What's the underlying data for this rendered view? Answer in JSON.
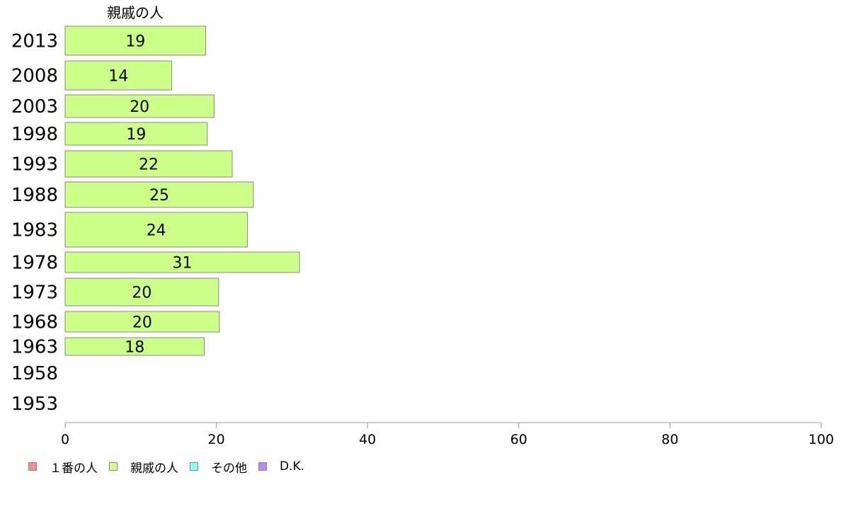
{
  "chart_data": {
    "type": "bar",
    "orientation": "horizontal",
    "column_header": "親戚の人",
    "categories": [
      "2013",
      "2008",
      "2003",
      "1998",
      "1993",
      "1988",
      "1983",
      "1978",
      "1973",
      "1968",
      "1963",
      "1958",
      "1953"
    ],
    "values": [
      18.6,
      14.1,
      19.7,
      18.8,
      22.1,
      24.9,
      24.1,
      31.0,
      20.3,
      20.4,
      18.4,
      null,
      null
    ],
    "value_labels": [
      "19",
      "14",
      "20",
      "19",
      "22",
      "25",
      "24",
      "31",
      "20",
      "20",
      "18",
      "",
      ""
    ],
    "xlim": [
      0,
      100
    ],
    "xticks": [
      "0",
      "20",
      "40",
      "60",
      "80",
      "100"
    ],
    "grid": false,
    "legend_position": "bottom-left",
    "legend": [
      {
        "label": "１番の人",
        "color": "#f58f8f"
      },
      {
        "label": "親戚の人",
        "color": "#ccff88"
      },
      {
        "label": "その他",
        "color": "#88ffff"
      },
      {
        "label": "D.K.",
        "color": "#bb88ff"
      }
    ],
    "bar_color": "#ccff88",
    "bar_border_color": "#888888",
    "axis_color": "#999999"
  }
}
